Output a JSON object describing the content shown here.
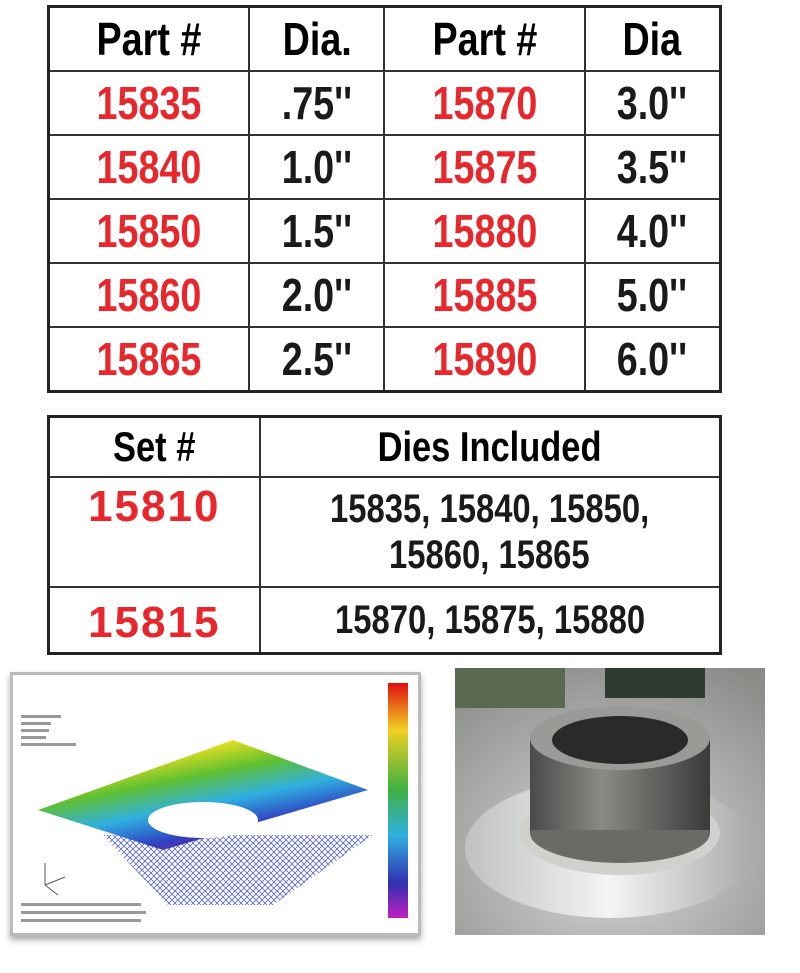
{
  "parts_table": {
    "headers": [
      "Part #",
      "Dia.",
      "Part #",
      "Dia"
    ],
    "rows": [
      [
        "15835",
        ".75''",
        "15870",
        "3.0''"
      ],
      [
        "15840",
        "1.0''",
        "15875",
        "3.5''"
      ],
      [
        "15850",
        "1.5''",
        "15880",
        "4.0''"
      ],
      [
        "15860",
        "2.0''",
        "15885",
        "5.0''"
      ],
      [
        "15865",
        "2.5''",
        "15890",
        "6.0''"
      ]
    ]
  },
  "sets_table": {
    "headers": [
      "Set #",
      "Dies Included"
    ],
    "rows": [
      {
        "set": "15810",
        "dies_line1": "15835, 15840, 15850,",
        "dies_line2": "15860, 15865"
      },
      {
        "set": "15815",
        "dies_line1": "15870, 15875, 15880",
        "dies_line2": ""
      }
    ]
  },
  "colors": {
    "part_number": "#e8262b",
    "text": "#1a1a1a"
  }
}
